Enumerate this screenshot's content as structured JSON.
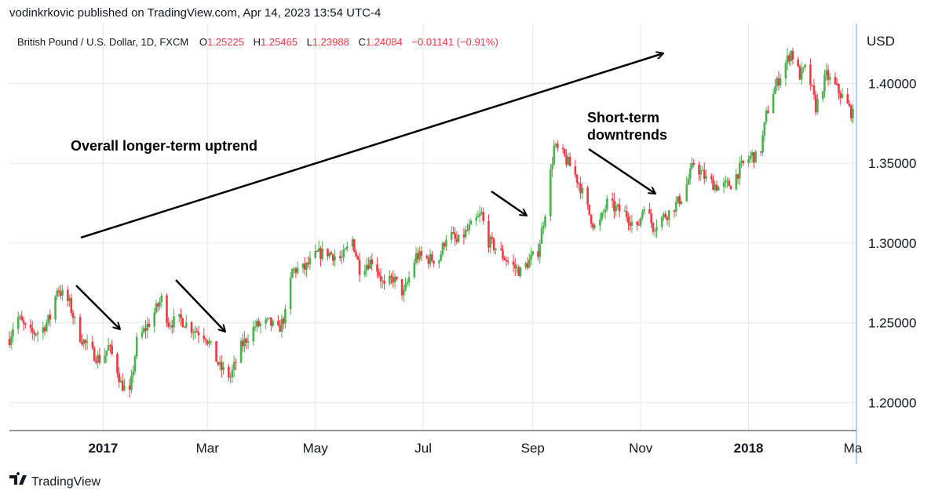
{
  "header": {
    "published_line": "vodinkrkovic published on TradingView.com, Apr 14, 2023 13:54 UTC-4"
  },
  "legend": {
    "symbol": "British Pound / U.S. Dollar, 1D, FXCM",
    "o_label": "O",
    "o_value": "1.25225",
    "h_label": "H",
    "h_value": "1.25465",
    "l_label": "L",
    "l_value": "1.23988",
    "c_label": "C",
    "c_value": "1.24084",
    "change": "−0.01141 (−0.91%)"
  },
  "colors": {
    "up": "#26a69a",
    "down": "#ef5350",
    "up_candle": "#4caf50",
    "down_candle": "#f23645",
    "grid": "#e6e6e6",
    "axis_line": "#2a2e39",
    "cursor_line": "#5b9cf6"
  },
  "footer": {
    "brand_logo": "tradingview-logo",
    "brand_name": "TradingView"
  },
  "annotations": [
    {
      "id": "uptrend-label",
      "text": "Overall longer-term uptrend"
    },
    {
      "id": "downtrends-label",
      "lines": [
        "Short-term",
        "downtrends"
      ]
    }
  ],
  "chart_data": {
    "type": "candlestick",
    "title": "British Pound / U.S. Dollar, 1D, FXCM",
    "y_axis": {
      "unit_label": "USD",
      "ticks": [
        "1.20000",
        "1.25000",
        "1.30000",
        "1.35000",
        "1.40000"
      ],
      "range": [
        1.1825,
        1.4375
      ],
      "position": "right"
    },
    "x_axis": {
      "ticks": [
        {
          "label": "2017",
          "date": "2017-01-01",
          "bold": true
        },
        {
          "label": "Mar",
          "date": "2017-03-01",
          "bold": false
        },
        {
          "label": "May",
          "date": "2017-05-01",
          "bold": false
        },
        {
          "label": "Jul",
          "date": "2017-07-01",
          "bold": false
        },
        {
          "label": "Sep",
          "date": "2017-09-01",
          "bold": false
        },
        {
          "label": "Nov",
          "date": "2017-11-01",
          "bold": false
        },
        {
          "label": "2018",
          "date": "2018-01-01",
          "bold": true
        },
        {
          "label": "Ma",
          "date": "2018-03-01",
          "bold": false
        }
      ],
      "range": [
        "2016-11-09",
        "2018-03-03"
      ]
    },
    "grid": true,
    "legend_placement": "top-left",
    "close_path": [
      [
        "2016-11-09",
        1.24
      ],
      [
        "2016-11-13",
        1.255
      ],
      [
        "2016-11-20",
        1.243
      ],
      [
        "2016-11-27",
        1.245
      ],
      [
        "2016-12-03",
        1.255
      ],
      [
        "2016-12-06",
        1.272
      ],
      [
        "2016-12-13",
        1.262
      ],
      [
        "2016-12-18",
        1.243
      ],
      [
        "2016-12-25",
        1.232
      ],
      [
        "2016-12-31",
        1.226
      ],
      [
        "2017-01-04",
        1.235
      ],
      [
        "2017-01-08",
        1.225
      ],
      [
        "2017-01-11",
        1.212
      ],
      [
        "2017-01-16",
        1.205
      ],
      [
        "2017-01-20",
        1.238
      ],
      [
        "2017-01-27",
        1.25
      ],
      [
        "2017-02-03",
        1.265
      ],
      [
        "2017-02-07",
        1.25
      ],
      [
        "2017-02-14",
        1.252
      ],
      [
        "2017-02-21",
        1.246
      ],
      [
        "2017-02-28",
        1.242
      ],
      [
        "2017-03-04",
        1.232
      ],
      [
        "2017-03-08",
        1.222
      ],
      [
        "2017-03-14",
        1.216
      ],
      [
        "2017-03-20",
        1.235
      ],
      [
        "2017-03-28",
        1.248
      ],
      [
        "2017-04-05",
        1.25
      ],
      [
        "2017-04-10",
        1.245
      ],
      [
        "2017-04-14",
        1.255
      ],
      [
        "2017-04-18",
        1.283
      ],
      [
        "2017-04-25",
        1.284
      ],
      [
        "2017-05-02",
        1.293
      ],
      [
        "2017-05-08",
        1.294
      ],
      [
        "2017-05-16",
        1.29
      ],
      [
        "2017-05-22",
        1.302
      ],
      [
        "2017-05-26",
        1.284
      ],
      [
        "2017-06-03",
        1.29
      ],
      [
        "2017-06-09",
        1.272
      ],
      [
        "2017-06-14",
        1.278
      ],
      [
        "2017-06-20",
        1.268
      ],
      [
        "2017-06-27",
        1.292
      ],
      [
        "2017-07-04",
        1.29
      ],
      [
        "2017-07-10",
        1.29
      ],
      [
        "2017-07-15",
        1.308
      ],
      [
        "2017-07-20",
        1.3
      ],
      [
        "2017-07-27",
        1.309
      ],
      [
        "2017-08-03",
        1.318
      ],
      [
        "2017-08-06",
        1.302
      ],
      [
        "2017-08-12",
        1.296
      ],
      [
        "2017-08-19",
        1.287
      ],
      [
        "2017-08-25",
        1.282
      ],
      [
        "2017-08-31",
        1.29
      ],
      [
        "2017-09-04",
        1.295
      ],
      [
        "2017-09-08",
        1.32
      ],
      [
        "2017-09-13",
        1.36
      ],
      [
        "2017-09-18",
        1.355
      ],
      [
        "2017-09-24",
        1.345
      ],
      [
        "2017-09-28",
        1.335
      ],
      [
        "2017-10-03",
        1.318
      ],
      [
        "2017-10-07",
        1.307
      ],
      [
        "2017-10-13",
        1.325
      ],
      [
        "2017-10-17",
        1.322
      ],
      [
        "2017-10-24",
        1.318
      ],
      [
        "2017-10-30",
        1.308
      ],
      [
        "2017-11-03",
        1.325
      ],
      [
        "2017-11-08",
        1.31
      ],
      [
        "2017-11-12",
        1.315
      ],
      [
        "2017-11-18",
        1.32
      ],
      [
        "2017-11-25",
        1.33
      ],
      [
        "2017-12-01",
        1.35
      ],
      [
        "2017-12-08",
        1.34
      ],
      [
        "2017-12-15",
        1.335
      ],
      [
        "2017-12-22",
        1.337
      ],
      [
        "2017-12-28",
        1.348
      ],
      [
        "2018-01-03",
        1.355
      ],
      [
        "2018-01-07",
        1.352
      ],
      [
        "2018-01-11",
        1.38
      ],
      [
        "2018-01-15",
        1.395
      ],
      [
        "2018-01-19",
        1.405
      ],
      [
        "2018-01-25",
        1.42
      ],
      [
        "2018-01-30",
        1.405
      ],
      [
        "2018-02-03",
        1.41
      ],
      [
        "2018-02-08",
        1.385
      ],
      [
        "2018-02-14",
        1.405
      ],
      [
        "2018-02-19",
        1.398
      ],
      [
        "2018-02-24",
        1.39
      ],
      [
        "2018-03-02",
        1.378
      ]
    ]
  }
}
